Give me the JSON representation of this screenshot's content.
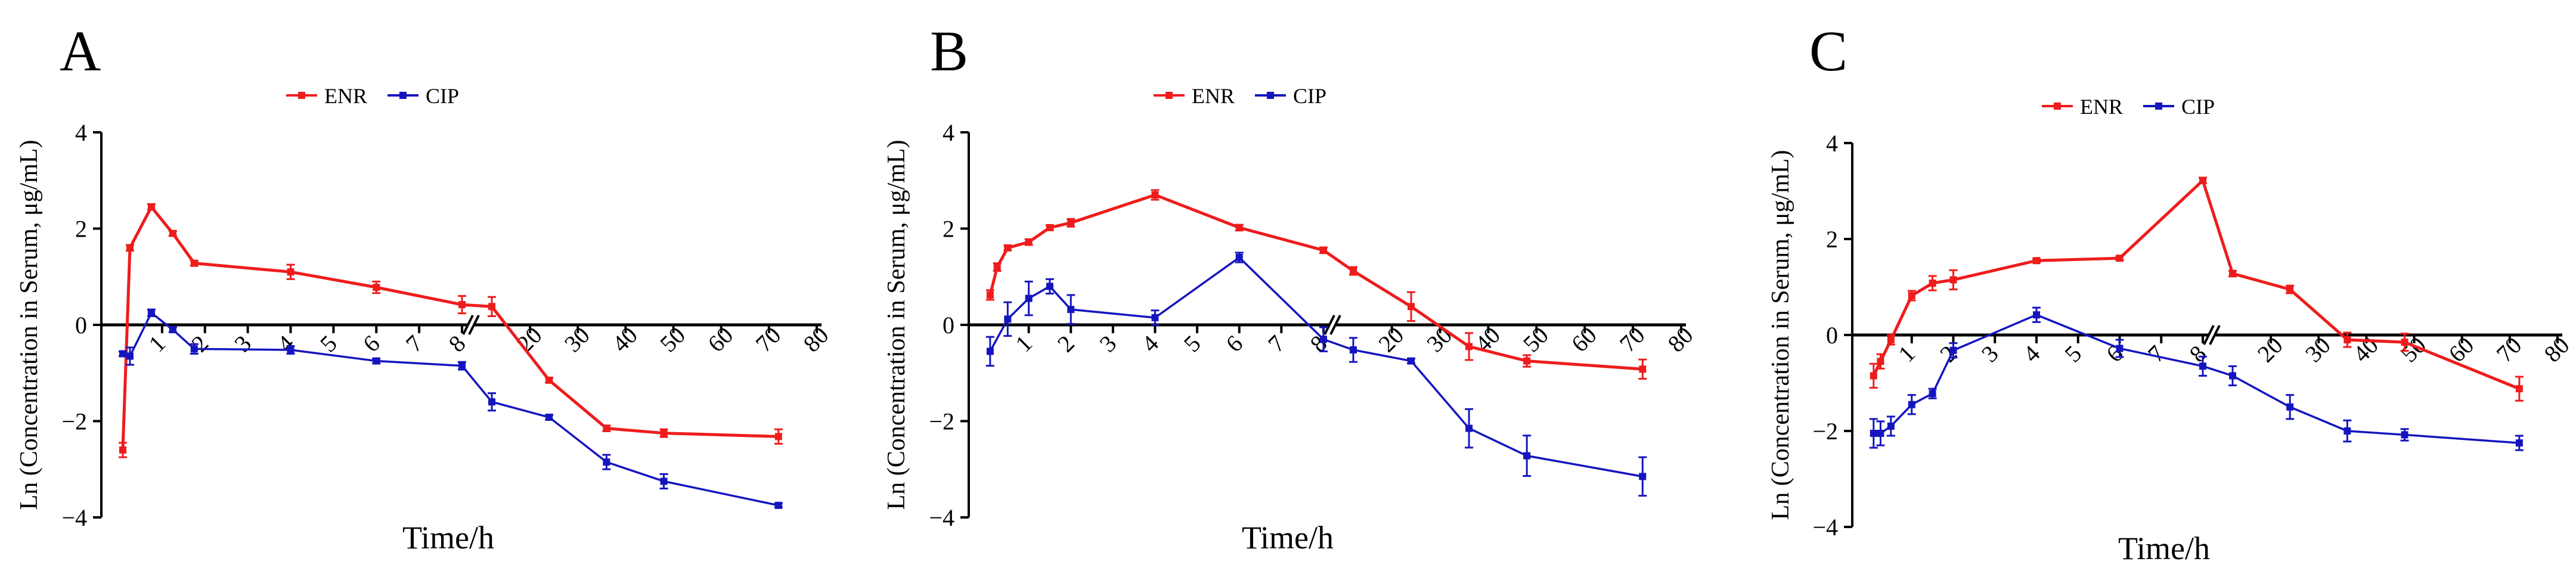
{
  "colors": {
    "ENR": "#ee1c1c",
    "CIP": "#1515bf",
    "axis": "#000000"
  },
  "chart_data": [
    {
      "type": "line",
      "panel": "A",
      "xlabel": "Time/h",
      "ylabel": "Ln (Concentration in Serum, μg/mL)",
      "ylim": [
        -4,
        4
      ],
      "y_ticks": [
        4,
        2,
        0,
        -2,
        -4
      ],
      "x_axis_break": true,
      "x_ticks_segment_1": [
        1,
        2,
        3,
        4,
        5,
        6,
        7,
        8
      ],
      "x_ticks_segment_2": [
        20,
        30,
        40,
        50,
        60,
        70,
        80
      ],
      "x_tick_labels": [
        "1",
        "2",
        "3",
        "4",
        "5",
        "6",
        "7",
        "8",
        "20",
        "30",
        "40",
        "50",
        "60",
        "70",
        "80"
      ],
      "legend": [
        "ENR",
        "CIP"
      ],
      "series": [
        {
          "name": "ENR",
          "x": [
            0.083,
            0.25,
            0.75,
            1.25,
            1.75,
            4,
            6,
            8,
            12,
            24,
            36,
            48,
            72
          ],
          "y": [
            -2.6,
            1.6,
            2.45,
            1.9,
            1.28,
            1.1,
            0.78,
            0.42,
            0.38,
            -1.15,
            -2.15,
            -2.25,
            -2.32
          ],
          "err": [
            0.15,
            0.06,
            0.06,
            0.05,
            0.05,
            0.15,
            0.12,
            0.18,
            0.2,
            0.05,
            0.06,
            0.08,
            0.15
          ]
        },
        {
          "name": "CIP",
          "x": [
            0.083,
            0.25,
            0.75,
            1.25,
            1.75,
            4,
            6,
            8,
            12,
            24,
            36,
            48,
            72
          ],
          "y": [
            -0.6,
            -0.65,
            0.25,
            -0.1,
            -0.5,
            -0.52,
            -0.75,
            -0.85,
            -1.6,
            -1.92,
            -2.85,
            -3.25,
            -3.75
          ],
          "err": [
            0.05,
            0.18,
            0.07,
            0.05,
            0.1,
            0.08,
            0.05,
            0.08,
            0.18,
            0.05,
            0.15,
            0.15,
            0.04
          ]
        }
      ]
    },
    {
      "type": "line",
      "panel": "B",
      "xlabel": "Time/h",
      "ylabel": "Ln (Concentration in Serum, μg/mL)",
      "ylim": [
        -4,
        4
      ],
      "y_ticks": [
        4,
        2,
        0,
        -2,
        -4
      ],
      "x_axis_break": true,
      "x_ticks_segment_1": [
        1,
        2,
        3,
        4,
        5,
        6,
        7,
        8
      ],
      "x_ticks_segment_2": [
        20,
        30,
        40,
        50,
        60,
        70,
        80
      ],
      "x_tick_labels": [
        "1",
        "2",
        "3",
        "4",
        "5",
        "6",
        "7",
        "8",
        "20",
        "30",
        "40",
        "50",
        "60",
        "70",
        "80"
      ],
      "legend": [
        "ENR",
        "CIP"
      ],
      "series": [
        {
          "name": "ENR",
          "x": [
            0.083,
            0.25,
            0.5,
            1,
            1.5,
            2,
            4,
            6,
            8,
            12,
            24,
            36,
            48,
            72
          ],
          "y": [
            0.62,
            1.2,
            1.6,
            1.72,
            2.02,
            2.12,
            2.7,
            2.02,
            1.55,
            1.12,
            0.38,
            -0.45,
            -0.75,
            -0.92
          ],
          "err": [
            0.1,
            0.08,
            0.05,
            0.06,
            0.05,
            0.08,
            0.1,
            0.06,
            0.06,
            0.08,
            0.3,
            0.28,
            0.12,
            0.2
          ]
        },
        {
          "name": "CIP",
          "x": [
            0.083,
            0.5,
            1,
            1.5,
            2,
            4,
            6,
            8,
            12,
            24,
            36,
            48,
            72
          ],
          "y": [
            -0.55,
            0.12,
            0.55,
            0.8,
            0.32,
            0.15,
            1.4,
            -0.3,
            -0.52,
            -0.75,
            -2.15,
            -2.72,
            -3.15
          ],
          "err": [
            0.3,
            0.35,
            0.35,
            0.15,
            0.3,
            0.15,
            0.1,
            0.25,
            0.25,
            0.05,
            0.4,
            0.42,
            0.4
          ]
        }
      ]
    },
    {
      "type": "line",
      "panel": "C",
      "xlabel": "Time/h",
      "ylabel": "Ln (Concentration in Serum, μg/mL)",
      "ylim": [
        -4,
        4
      ],
      "y_ticks": [
        4,
        2,
        0,
        -2,
        -4
      ],
      "x_axis_break": true,
      "x_ticks_segment_1": [
        1,
        2,
        3,
        4,
        5,
        6,
        7,
        8
      ],
      "x_ticks_segment_2": [
        20,
        30,
        40,
        50,
        60,
        70,
        80
      ],
      "x_tick_labels": [
        "1",
        "2",
        "3",
        "4",
        "5",
        "6",
        "7",
        "8",
        "20",
        "30",
        "40",
        "50",
        "60",
        "70",
        "80"
      ],
      "legend": [
        "ENR",
        "CIP"
      ],
      "series": [
        {
          "name": "ENR",
          "x": [
            0.083,
            0.25,
            0.5,
            1,
            1.5,
            2,
            4,
            6,
            8,
            12,
            24,
            36,
            48,
            72
          ],
          "y": [
            -0.85,
            -0.55,
            -0.1,
            0.82,
            1.08,
            1.15,
            1.55,
            1.6,
            3.22,
            1.28,
            0.95,
            -0.1,
            -0.15,
            -1.12
          ],
          "err": [
            0.25,
            0.15,
            0.1,
            0.1,
            0.15,
            0.2,
            0.04,
            0.04,
            0.06,
            0.06,
            0.08,
            0.15,
            0.18,
            0.25
          ]
        },
        {
          "name": "CIP",
          "x": [
            0.083,
            0.25,
            0.5,
            1,
            1.5,
            2,
            4,
            6,
            8,
            12,
            24,
            36,
            48,
            72
          ],
          "y": [
            -2.05,
            -2.05,
            -1.9,
            -1.45,
            -1.22,
            -0.32,
            0.42,
            -0.28,
            -0.65,
            -0.85,
            -1.5,
            -2.0,
            -2.08,
            -2.25
          ],
          "err": [
            0.3,
            0.25,
            0.2,
            0.2,
            0.1,
            0.15,
            0.15,
            0.18,
            0.2,
            0.2,
            0.25,
            0.22,
            0.12,
            0.15
          ]
        }
      ]
    }
  ]
}
